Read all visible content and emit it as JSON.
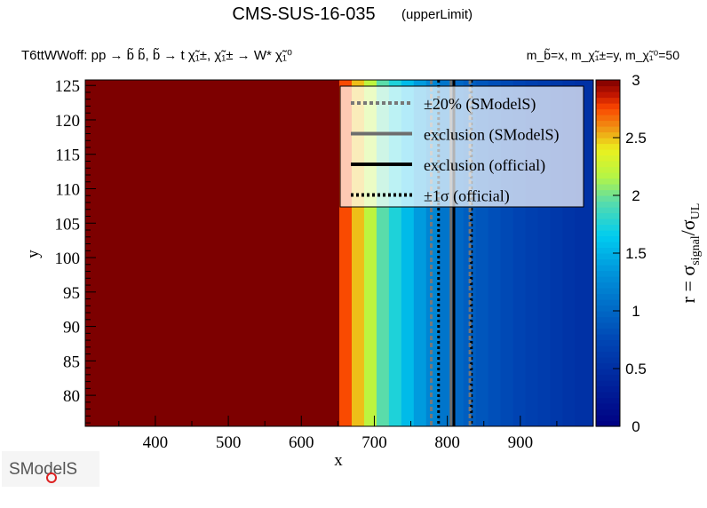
{
  "chart_data": {
    "type": "heatmap",
    "title": "CMS-SUS-16-035",
    "title_suffix": "(upperLimit)",
    "process": "T6ttWWoff: pp → b̃ b̃, b̃ → t χ̃₁±, χ̃₁± → W* χ̃₁⁰",
    "mass_label": "m_b̃=x, m_χ̃₁±=y, m_χ̃₁⁰=50",
    "xlabel": "x",
    "ylabel": "y",
    "zlabel": "r = σsignal/σUL",
    "xlim": [
      304,
      1000
    ],
    "ylim": [
      75.5,
      125.8
    ],
    "zlim": [
      0,
      3
    ],
    "xticks": [
      400,
      500,
      600,
      700,
      800,
      900
    ],
    "yticks": [
      80,
      85,
      90,
      95,
      100,
      105,
      110,
      115,
      120,
      125
    ],
    "zticks": [
      "0",
      "0.5",
      "1",
      "1.5",
      "2",
      "2.5",
      "3"
    ],
    "bands": [
      {
        "x0": 304,
        "x1": 652,
        "r": 3.0
      },
      {
        "x0": 652,
        "x1": 669,
        "r": 2.75
      },
      {
        "x0": 669,
        "x1": 686,
        "r": 2.5
      },
      {
        "x0": 686,
        "x1": 703,
        "r": 2.2
      },
      {
        "x0": 703,
        "x1": 720,
        "r": 1.95
      },
      {
        "x0": 720,
        "x1": 737,
        "r": 1.75
      },
      {
        "x0": 737,
        "x1": 754,
        "r": 1.55
      },
      {
        "x0": 754,
        "x1": 771,
        "r": 1.38
      },
      {
        "x0": 771,
        "x1": 788,
        "r": 1.22
      },
      {
        "x0": 788,
        "x1": 805,
        "r": 1.1
      },
      {
        "x0": 805,
        "x1": 822,
        "r": 1.0
      },
      {
        "x0": 822,
        "x1": 839,
        "r": 0.93
      },
      {
        "x0": 839,
        "x1": 856,
        "r": 0.87
      },
      {
        "x0": 856,
        "x1": 873,
        "r": 0.82
      },
      {
        "x0": 873,
        "x1": 890,
        "r": 0.77
      },
      {
        "x0": 890,
        "x1": 907,
        "r": 0.72
      },
      {
        "x0": 907,
        "x1": 924,
        "r": 0.68
      },
      {
        "x0": 924,
        "x1": 941,
        "r": 0.64
      },
      {
        "x0": 941,
        "x1": 958,
        "r": 0.6
      },
      {
        "x0": 958,
        "x1": 975,
        "r": 0.56
      },
      {
        "x0": 975,
        "x1": 1000,
        "r": 0.52
      }
    ],
    "contours": [
      {
        "name": "minus20-smodels",
        "x": 778,
        "style": "gray-dashed"
      },
      {
        "name": "minus1sigma-official",
        "x": 788,
        "style": "black-dotted"
      },
      {
        "name": "exclusion-smodels",
        "x": 805,
        "style": "gray-solid"
      },
      {
        "name": "exclusion-official",
        "x": 809,
        "style": "black-solid"
      },
      {
        "name": "plus1sigma-official",
        "x": 833,
        "style": "black-dotted"
      },
      {
        "name": "plus20-smodels",
        "x": 831,
        "style": "gray-dashed"
      }
    ],
    "legend": {
      "placement": "top-right",
      "entries": [
        "±20% (SModelS)",
        "exclusion (SModelS)",
        "exclusion (official)",
        "±1σ (official)"
      ]
    }
  },
  "logo": "SModelS",
  "colors": {
    "gray": "#6e6e6e",
    "black": "#000000"
  }
}
